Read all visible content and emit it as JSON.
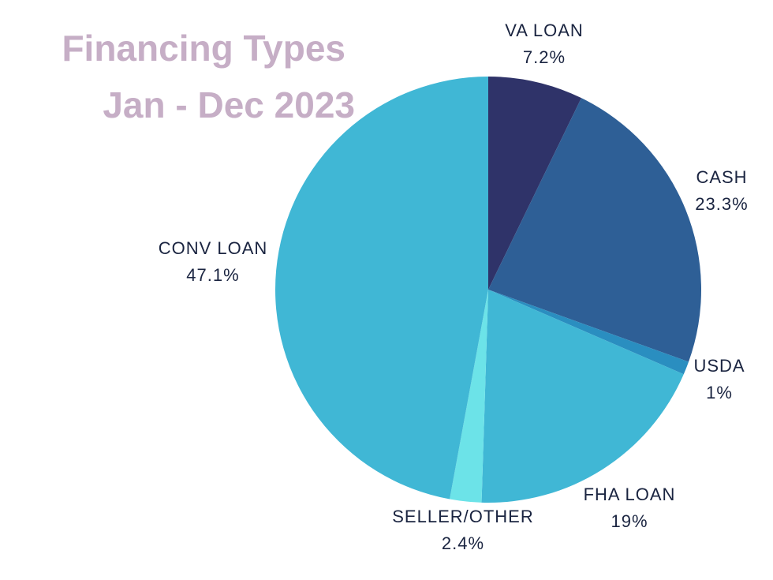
{
  "chart_data": {
    "type": "pie",
    "title": "Financing Types",
    "subtitle": "Jan - Dec 2023",
    "categories": [
      "VA LOAN",
      "CASH",
      "USDA",
      "FHA LOAN",
      "SELLER/OTHER",
      "CONV LOAN"
    ],
    "values": [
      7.2,
      23.3,
      1,
      19,
      2.4,
      47.1
    ],
    "value_labels": [
      "7.2%",
      "23.3%",
      "1%",
      "19%",
      "2.4%",
      "47.1%"
    ],
    "colors": [
      "#2f3369",
      "#2e5f96",
      "#2a8ec0",
      "#40b7d5",
      "#6ce3e8",
      "#40b7d5"
    ]
  }
}
